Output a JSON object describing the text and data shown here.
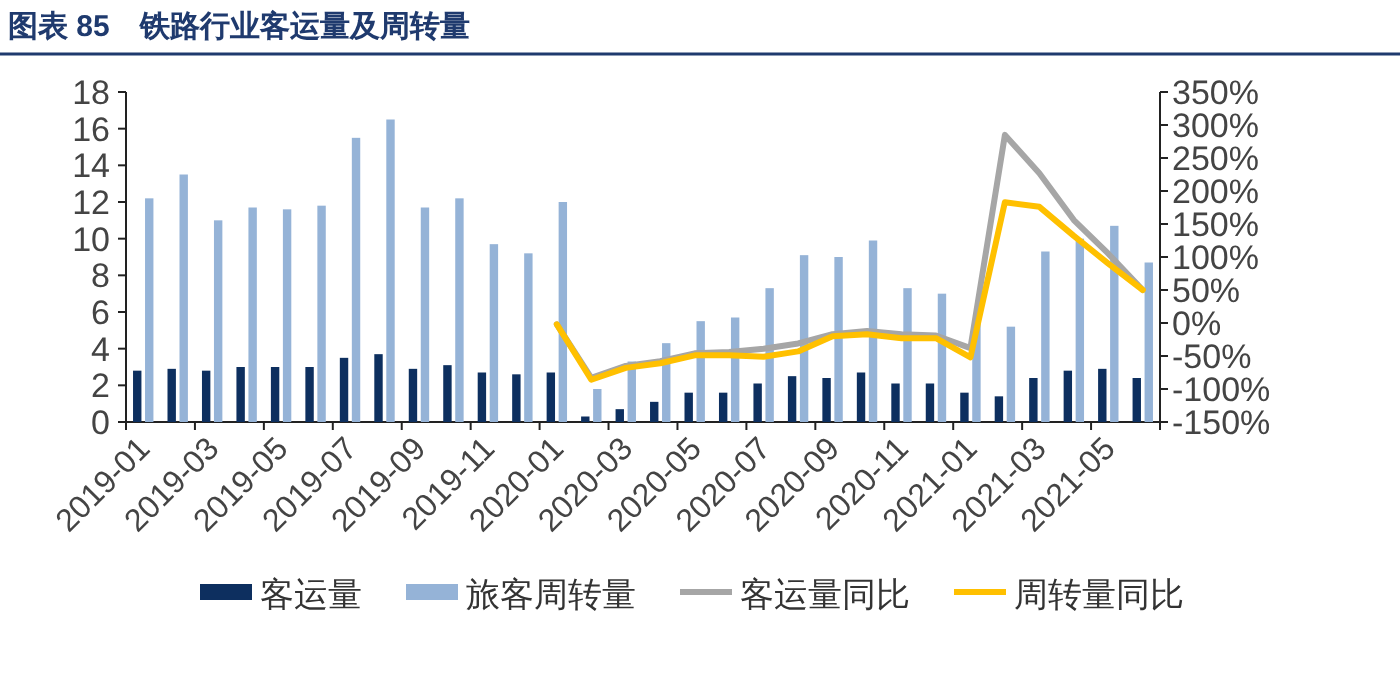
{
  "chart_data": {
    "type": "bar",
    "title": "图表 85　铁路行业客运量及周转量",
    "categories": [
      "2019-01",
      null,
      "2019-03",
      null,
      "2019-05",
      null,
      "2019-07",
      null,
      "2019-09",
      null,
      "2019-11",
      null,
      "2020-01",
      null,
      "2020-03",
      null,
      "2020-05",
      null,
      "2020-07",
      null,
      "2020-09",
      null,
      "2020-11",
      null,
      "2021-01",
      null,
      "2021-03",
      null,
      "2021-05",
      null
    ],
    "series": [
      {
        "name": "客运量",
        "color": "#0d2f5f",
        "values": [
          2.8,
          2.9,
          2.8,
          3.0,
          3.0,
          3.0,
          3.5,
          3.7,
          2.9,
          3.1,
          2.7,
          2.6,
          2.7,
          0.3,
          0.7,
          1.1,
          1.6,
          1.6,
          2.1,
          2.5,
          2.4,
          2.7,
          2.1,
          2.1,
          1.6,
          1.4,
          2.4,
          2.8,
          2.9,
          2.4
        ]
      },
      {
        "name": "旅客周转量",
        "color": "#95b3d7",
        "values": [
          12.2,
          13.5,
          11.0,
          11.7,
          11.6,
          11.8,
          15.5,
          16.5,
          11.7,
          12.2,
          9.7,
          9.2,
          12.0,
          1.8,
          3.3,
          4.3,
          5.5,
          5.7,
          7.3,
          9.1,
          9.0,
          9.9,
          7.3,
          7.0,
          5.5,
          5.2,
          9.3,
          10.0,
          10.7,
          8.7
        ]
      },
      {
        "name": "客运量同比",
        "color": "#a6a6a6",
        "type": "line",
        "axis": "y2",
        "values": [
          null,
          null,
          null,
          null,
          null,
          null,
          null,
          null,
          null,
          null,
          null,
          null,
          -2,
          -83,
          -65,
          -58,
          -46,
          -44,
          -39,
          -31,
          -17,
          -12,
          -17,
          -19,
          -38,
          285,
          227,
          156,
          105,
          50
        ]
      },
      {
        "name": "周转量同比",
        "color": "#ffc000",
        "type": "line",
        "axis": "y2",
        "values": [
          null,
          null,
          null,
          null,
          null,
          null,
          null,
          null,
          null,
          null,
          null,
          null,
          -2,
          -86,
          -68,
          -61,
          -49,
          -49,
          -51,
          -43,
          -20,
          -17,
          -23,
          -23,
          -52,
          183,
          176,
          132,
          90,
          50
        ]
      }
    ],
    "ylim": [
      0,
      18
    ],
    "yticks": [
      0,
      2,
      4,
      6,
      8,
      10,
      12,
      14,
      16,
      18
    ],
    "y2lim": [
      -150,
      350
    ],
    "y2ticks": [
      {
        "value": -150,
        "label": "-150%"
      },
      {
        "value": -100,
        "label": "-100%"
      },
      {
        "value": -50,
        "label": "-50%"
      },
      {
        "value": 0,
        "label": "0%"
      },
      {
        "value": 50,
        "label": "50%"
      },
      {
        "value": 100,
        "label": "100%"
      },
      {
        "value": 150,
        "label": "150%"
      },
      {
        "value": 200,
        "label": "200%"
      },
      {
        "value": 250,
        "label": "250%"
      },
      {
        "value": 300,
        "label": "300%"
      },
      {
        "value": 350,
        "label": "350%"
      }
    ],
    "grid": false,
    "legend": "bottom"
  }
}
